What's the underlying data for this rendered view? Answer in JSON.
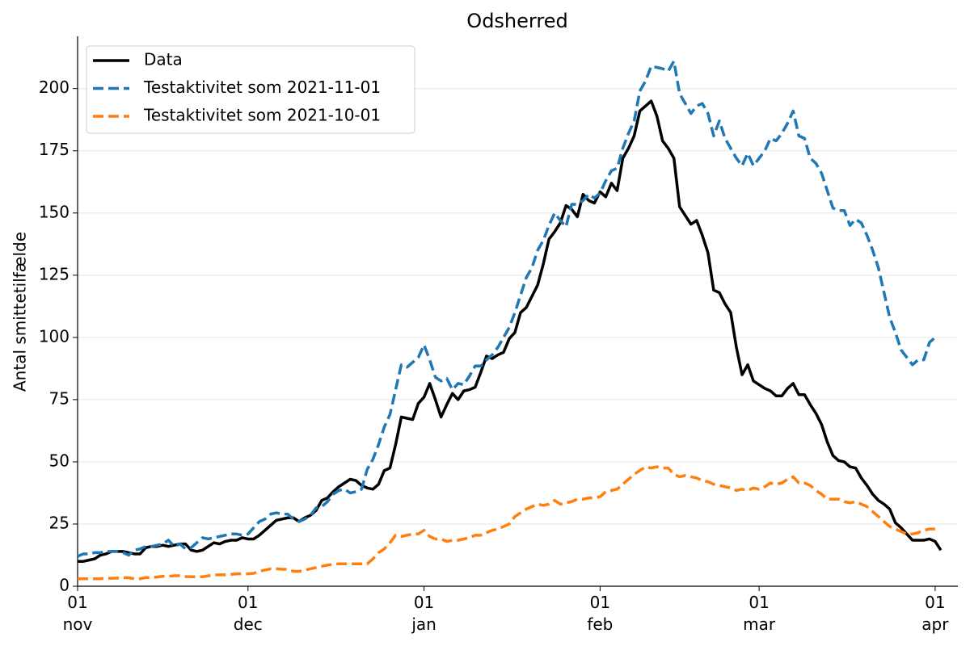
{
  "chart_data": {
    "type": "line",
    "title": "Odsherred",
    "y_label": "Antal smittetilfælde",
    "x": [
      0,
      1,
      2,
      3,
      4,
      5,
      6,
      7,
      8,
      9,
      10,
      11,
      12,
      13,
      14,
      15,
      16,
      17,
      18,
      19,
      20,
      21,
      22,
      23,
      24,
      25,
      26,
      27,
      28,
      29,
      30,
      31,
      32,
      33,
      34,
      35,
      36,
      37,
      38,
      39,
      40,
      41,
      42,
      43,
      44,
      45,
      46,
      47,
      48,
      49,
      50,
      51,
      52,
      53,
      54,
      55,
      56,
      57,
      58,
      59,
      60,
      61,
      62,
      63,
      64,
      65,
      66,
      67,
      68,
      69,
      70,
      71,
      72,
      73,
      74,
      75,
      76,
      77,
      78,
      79,
      80,
      81,
      82,
      83,
      84,
      85,
      86,
      87,
      88,
      89,
      90,
      91,
      92,
      93,
      94,
      95,
      96,
      97,
      98,
      99,
      100,
      101,
      102,
      103,
      104,
      105,
      106,
      107,
      108,
      109,
      110,
      111,
      112,
      113,
      114,
      115,
      116,
      117,
      118,
      119,
      120,
      121,
      122,
      123,
      124,
      125,
      126,
      127,
      128,
      129,
      130,
      131,
      132,
      133,
      134,
      135,
      136,
      137,
      138,
      139,
      140,
      141,
      142,
      143,
      144,
      145,
      146,
      147,
      148,
      149,
      150,
      151,
      152
    ],
    "series": [
      {
        "name": "Data",
        "color": "#000000",
        "linestyle": "solid",
        "values": [
          10,
          10,
          10.5,
          11,
          12.5,
          13,
          14,
          14,
          14,
          13.5,
          13,
          13,
          15.5,
          16,
          16,
          16.5,
          16,
          16.5,
          17,
          17,
          14.5,
          14,
          14.5,
          16,
          17.5,
          17,
          18,
          18.5,
          18.5,
          19.5,
          19,
          19,
          20.5,
          22.5,
          24.5,
          26.5,
          27,
          27.5,
          27.5,
          26,
          27.5,
          28.5,
          30.5,
          34.5,
          35.5,
          38,
          40,
          41.5,
          43,
          42.5,
          40.5,
          39.5,
          39,
          41,
          46.5,
          47.5,
          57,
          68,
          67.5,
          67,
          73.5,
          76,
          81.5,
          75,
          68,
          73,
          77.5,
          75,
          78.5,
          79,
          80,
          86,
          92.5,
          91.5,
          93,
          94,
          99.5,
          102,
          110,
          112,
          116.5,
          121,
          129.5,
          139.5,
          142.5,
          146,
          153,
          151.5,
          148.5,
          157.5,
          155,
          154,
          158.5,
          156.5,
          162,
          159,
          172,
          176,
          181,
          191,
          193,
          195,
          189,
          179,
          176,
          172,
          152.5,
          149,
          145.5,
          147,
          141,
          134,
          119,
          118,
          113.5,
          110,
          96,
          85,
          89,
          82.5,
          81,
          79.5,
          78.5,
          76.5,
          76.5,
          79.5,
          81.5,
          77,
          77,
          73,
          69.5,
          65,
          58,
          52.5,
          50.5,
          50,
          48,
          47.5,
          43.5,
          40.5,
          37,
          34.5,
          33,
          31,
          25.5,
          23.5,
          21,
          18.5,
          18.5,
          18.5,
          19,
          18,
          14.5
        ]
      },
      {
        "name": "Testaktivitet som 2021-11-01",
        "color": "#1f77b4",
        "linestyle": "dashed",
        "values": [
          12,
          13,
          13,
          13.5,
          13.5,
          14,
          14,
          14,
          13.5,
          12.5,
          14.5,
          15,
          16,
          16,
          16.5,
          17,
          18.5,
          16,
          17,
          15,
          15.5,
          17.5,
          19.5,
          19,
          19.5,
          20,
          20.5,
          21,
          21,
          20.5,
          21,
          23.5,
          26,
          27,
          29,
          29.5,
          29,
          29,
          27,
          26,
          27,
          28.5,
          31.5,
          32,
          34,
          37,
          38.5,
          39,
          37.5,
          38,
          39,
          47,
          51,
          57,
          64,
          69,
          79,
          89,
          88,
          90,
          92,
          97,
          91,
          84,
          82.5,
          83.5,
          79,
          81.5,
          81,
          84.5,
          88.5,
          88.5,
          91,
          93,
          96,
          100,
          104,
          110,
          117,
          124,
          128,
          135,
          139,
          145,
          150,
          147,
          144.5,
          153.5,
          153.5,
          155,
          157.5,
          156,
          158,
          163,
          167,
          168,
          176,
          182,
          187,
          199,
          203,
          209,
          208.5,
          208,
          207,
          211,
          198,
          194,
          190,
          193,
          194,
          190,
          181,
          187,
          180,
          176,
          172,
          169,
          174,
          169,
          172,
          175,
          180,
          179,
          182,
          186,
          191,
          181,
          180,
          172,
          170,
          166,
          159,
          152,
          151,
          151,
          145,
          147.5,
          146,
          141,
          135,
          128,
          118,
          108,
          102,
          95,
          92,
          89,
          91,
          91,
          98,
          100,
          null
        ]
      },
      {
        "name": "Testaktivitet som 2021-10-01",
        "color": "#ff7f0e",
        "linestyle": "dashed",
        "values": [
          3,
          3,
          3,
          3,
          3,
          3.2,
          3.2,
          3.3,
          3.4,
          3.4,
          3,
          3,
          3.5,
          3.5,
          3.7,
          4,
          4,
          4.2,
          4.2,
          3.9,
          3.8,
          3.8,
          3.8,
          4.2,
          4.5,
          4.6,
          4.6,
          4.8,
          5,
          5,
          5,
          5.2,
          6,
          6.5,
          7,
          7,
          6.8,
          6.8,
          6,
          6,
          6.5,
          7,
          7.5,
          8,
          8.5,
          8.8,
          9,
          9,
          9,
          9,
          9,
          9,
          11,
          13.5,
          15,
          17.5,
          20.5,
          20,
          20.5,
          21,
          21,
          22.5,
          20,
          19,
          19,
          18,
          18.5,
          18.5,
          19,
          19.5,
          20.5,
          20.5,
          21.5,
          22.5,
          23,
          24,
          25,
          28,
          29.5,
          31,
          32,
          33,
          32.5,
          33,
          34.5,
          33,
          33.5,
          34,
          35,
          35,
          35.5,
          35.5,
          36,
          38,
          38.5,
          39,
          41,
          43,
          45,
          46.5,
          48,
          47.5,
          48,
          47.5,
          47.5,
          45,
          44,
          44.5,
          44,
          43.5,
          42.5,
          42,
          41,
          40.5,
          40,
          39.5,
          38.5,
          39,
          38.5,
          39.5,
          39,
          40,
          41.5,
          41,
          41.5,
          43,
          44,
          41.5,
          41.5,
          40.5,
          38.5,
          37,
          35,
          35,
          35,
          34,
          33.5,
          34,
          33,
          32,
          30,
          28,
          26,
          24,
          23,
          22,
          21,
          21,
          21.5,
          22.5,
          23,
          23,
          null
        ]
      }
    ],
    "xlim": [
      0,
      155
    ],
    "xticks": [
      {
        "value": 0,
        "label": "01\nnov"
      },
      {
        "value": 30,
        "label": "01\ndec"
      },
      {
        "value": 61,
        "label": "01\njan"
      },
      {
        "value": 92,
        "label": "01\nfeb"
      },
      {
        "value": 120,
        "label": "01\nmar"
      },
      {
        "value": 151,
        "label": "01\napr"
      }
    ],
    "ylim": [
      0,
      221
    ],
    "yticks": [
      0,
      25,
      50,
      75,
      100,
      125,
      150,
      175,
      200
    ],
    "grid": true,
    "legend": "upper left"
  }
}
